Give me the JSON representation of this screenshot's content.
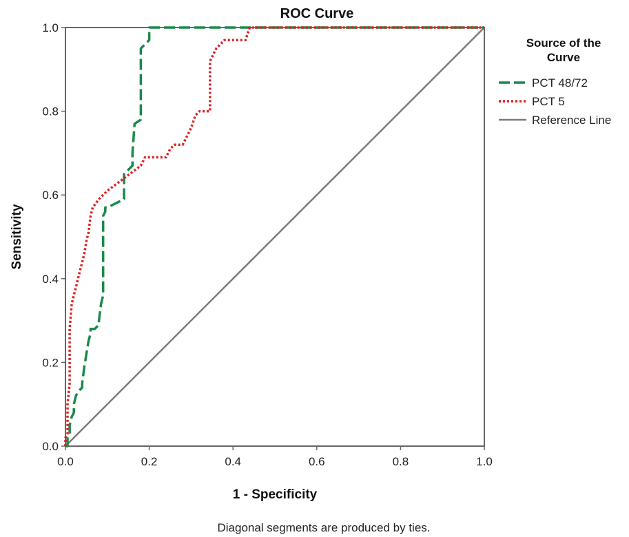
{
  "chart_data": {
    "type": "line",
    "title": "ROC Curve",
    "xlabel": "1 - Specificity",
    "ylabel": "Sensitivity",
    "xlim": [
      0,
      1
    ],
    "ylim": [
      0,
      1
    ],
    "x_ticks": [
      "0.0",
      "0.2",
      "0.4",
      "0.6",
      "0.8",
      "1.0"
    ],
    "y_ticks": [
      "0.0",
      "0.2",
      "0.4",
      "0.6",
      "0.8",
      "1.0"
    ],
    "grid": false,
    "legend_title_lines": [
      "Source of the",
      "Curve"
    ],
    "legend_position": "right",
    "footnote": "Diagonal segments are produced by ties.",
    "series": [
      {
        "name": "PCT 48/72",
        "color": "#1a8a4a",
        "style": "dashed",
        "x": [
          0,
          0.005,
          0.005,
          0.01,
          0.01,
          0.015,
          0.02,
          0.02,
          0.025,
          0.03,
          0.03,
          0.04,
          0.04,
          0.045,
          0.05,
          0.055,
          0.06,
          0.06,
          0.065,
          0.07,
          0.08,
          0.08,
          0.085,
          0.09,
          0.09,
          0.095,
          0.095,
          0.1,
          0.14,
          0.14,
          0.16,
          0.16,
          0.165,
          0.18,
          0.18,
          0.2,
          0.2,
          0.25,
          0.4,
          0.6,
          0.8,
          1.0
        ],
        "y": [
          0,
          0,
          0.02,
          0.03,
          0.05,
          0.07,
          0.08,
          0.1,
          0.12,
          0.13,
          0.13,
          0.14,
          0.15,
          0.19,
          0.22,
          0.25,
          0.27,
          0.28,
          0.28,
          0.28,
          0.29,
          0.3,
          0.34,
          0.36,
          0.55,
          0.56,
          0.57,
          0.57,
          0.59,
          0.65,
          0.67,
          0.7,
          0.77,
          0.78,
          0.95,
          0.97,
          1.0,
          1.0,
          1.0,
          1.0,
          1.0,
          1.0
        ]
      },
      {
        "name": "PCT 5",
        "color": "#e02020",
        "style": "dotted",
        "x": [
          0,
          0,
          0.005,
          0.005,
          0.01,
          0.01,
          0.015,
          0.02,
          0.025,
          0.03,
          0.035,
          0.04,
          0.045,
          0.05,
          0.055,
          0.06,
          0.065,
          0.08,
          0.1,
          0.14,
          0.18,
          0.19,
          0.24,
          0.25,
          0.26,
          0.28,
          0.29,
          0.3,
          0.31,
          0.32,
          0.345,
          0.345,
          0.36,
          0.38,
          0.43,
          0.44,
          0.6,
          0.8,
          1.0
        ],
        "y": [
          0,
          0.02,
          0.03,
          0.1,
          0.15,
          0.28,
          0.34,
          0.36,
          0.38,
          0.4,
          0.42,
          0.44,
          0.46,
          0.49,
          0.51,
          0.55,
          0.57,
          0.59,
          0.61,
          0.64,
          0.67,
          0.69,
          0.69,
          0.71,
          0.72,
          0.72,
          0.74,
          0.76,
          0.79,
          0.8,
          0.8,
          0.92,
          0.95,
          0.97,
          0.97,
          1.0,
          1.0,
          1.0,
          1.0
        ]
      },
      {
        "name": "Reference Line",
        "color": "#7a7a7a",
        "style": "solid",
        "x": [
          0,
          1
        ],
        "y": [
          0,
          1
        ]
      }
    ]
  }
}
